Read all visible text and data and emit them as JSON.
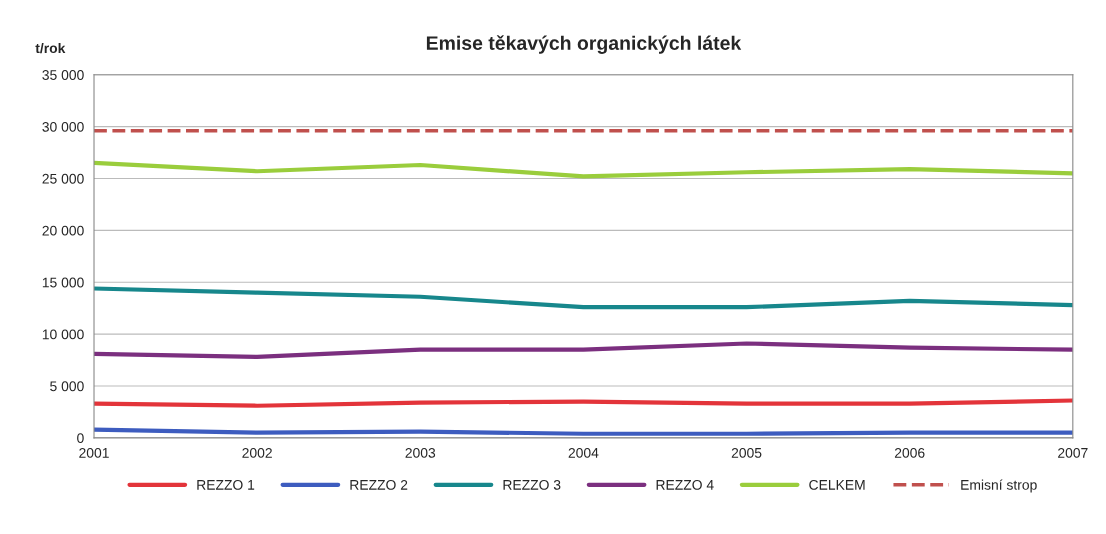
{
  "chart_data": {
    "type": "line",
    "title": "Emise těkavých organických látek",
    "ylabel": "t/rok",
    "x": [
      2001,
      2002,
      2003,
      2004,
      2005,
      2006,
      2007
    ],
    "series": [
      {
        "name": "REZZO 1",
        "color": "#e3343a",
        "values": [
          3300,
          3100,
          3400,
          3500,
          3300,
          3300,
          3600
        ]
      },
      {
        "name": "REZZO 2",
        "color": "#3d5cbf",
        "values": [
          800,
          500,
          600,
          400,
          400,
          500,
          500
        ]
      },
      {
        "name": "REZZO 3",
        "color": "#17878c",
        "values": [
          14400,
          14000,
          13600,
          12600,
          12600,
          13200,
          12800
        ]
      },
      {
        "name": "REZZO 4",
        "color": "#7b2f7f",
        "values": [
          8100,
          7800,
          8500,
          8500,
          9100,
          8700,
          8500
        ]
      },
      {
        "name": "CELKEM",
        "color": "#9acd3c",
        "values": [
          26500,
          25700,
          26300,
          25200,
          25600,
          25900,
          25500
        ]
      }
    ],
    "ref_lines": [
      {
        "axis": "y",
        "value": 29600,
        "label": "Emisní strop",
        "color": "#c0504d",
        "line_style": "dashed"
      }
    ],
    "xlim": [
      2001,
      2007
    ],
    "xticks": [
      2001,
      2002,
      2003,
      2004,
      2005,
      2006,
      2007
    ],
    "ylim": [
      0,
      35000
    ],
    "yticks": [
      {
        "value": 0,
        "label": "0"
      },
      {
        "value": 5000,
        "label": "5 000"
      },
      {
        "value": 10000,
        "label": "10 000"
      },
      {
        "value": 15000,
        "label": "15 000"
      },
      {
        "value": 20000,
        "label": "20 000"
      },
      {
        "value": 25000,
        "label": "25 000"
      },
      {
        "value": 30000,
        "label": "30 000"
      },
      {
        "value": 35000,
        "label": "35 000"
      }
    ],
    "grid": "y",
    "legend": "bottom",
    "marker": "none",
    "line_style": "solid"
  }
}
